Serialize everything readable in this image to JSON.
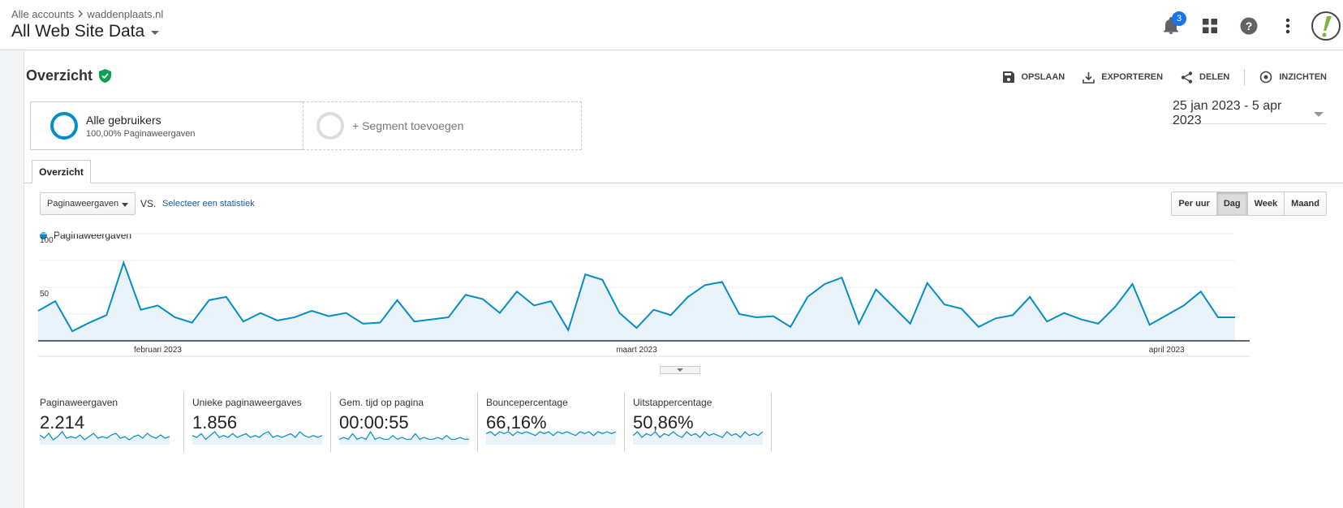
{
  "header": {
    "breadcrumb": [
      "Alle accounts",
      "waddenplaats.nl"
    ],
    "view_title": "All Web Site Data",
    "notification_count": "3",
    "icons": [
      "bell-icon",
      "apps-grid-icon",
      "help-icon",
      "more-vert-icon",
      "avatar"
    ]
  },
  "report": {
    "title": "Overzicht",
    "actions": [
      "OPSLAAN",
      "EXPORTEREN",
      "DELEN",
      "INZICHTEN"
    ]
  },
  "segments": {
    "active_name": "Alle gebruikers",
    "active_sub": "100,00% Paginaweergaven",
    "add_label": "+ Segment toevoegen"
  },
  "date_range": "25 jan 2023 - 5 apr 2023",
  "tabs": [
    "Overzicht"
  ],
  "controls": {
    "metric": "Paginaweergaven",
    "vs": "VS.",
    "select_stat": "Selecteer een statistiek",
    "granularity": [
      "Per uur",
      "Dag",
      "Week",
      "Maand"
    ],
    "granularity_active": "Dag"
  },
  "colors": {
    "series": "#058dc7",
    "fill": "#e9f3f9",
    "verified": "#0f9d58"
  },
  "chart_data": {
    "type": "area",
    "series": [
      {
        "name": "Paginaweergaven",
        "values": [
          28,
          37,
          9,
          17,
          24,
          73,
          29,
          33,
          22,
          17,
          38,
          41,
          18,
          26,
          19,
          22,
          28,
          23,
          26,
          16,
          17,
          38,
          18,
          20,
          22,
          43,
          39,
          26,
          46,
          33,
          37,
          10,
          62,
          57,
          26,
          12,
          29,
          24,
          41,
          52,
          55,
          25,
          22,
          23,
          13,
          41,
          53,
          59,
          16,
          48,
          32,
          16,
          54,
          34,
          30,
          13,
          21,
          24,
          41,
          18,
          26,
          20,
          16,
          32,
          53,
          15,
          24,
          33,
          46,
          22,
          22
        ]
      }
    ],
    "x_ticks": [
      "februari 2023",
      "maart 2023",
      "april 2023"
    ],
    "y_ticks": [
      "100",
      "50"
    ],
    "ylim": [
      0,
      100
    ],
    "grid": true
  },
  "stats": [
    {
      "label": "Paginaweergaven",
      "value": "2.214",
      "spark": [
        5,
        3,
        6,
        2,
        4,
        7,
        3,
        4,
        3,
        5,
        2,
        4,
        6,
        3,
        4,
        3,
        5,
        6,
        3,
        4,
        2,
        4,
        5,
        3,
        6,
        4,
        3,
        5,
        3,
        4
      ]
    },
    {
      "label": "Unieke paginaweergaves",
      "value": "1.856",
      "spark": [
        4,
        3,
        5,
        2,
        4,
        6,
        3,
        4,
        3,
        5,
        3,
        4,
        5,
        3,
        4,
        3,
        5,
        6,
        3,
        4,
        3,
        4,
        5,
        3,
        6,
        4,
        3,
        4,
        3,
        4
      ]
    },
    {
      "label": "Gem. tijd op pagina",
      "value": "00:00:55",
      "spark": [
        2,
        3,
        2,
        5,
        2,
        3,
        2,
        6,
        2,
        3,
        2,
        2,
        4,
        2,
        3,
        2,
        2,
        5,
        2,
        3,
        2,
        2,
        3,
        2,
        4,
        2,
        2,
        3,
        2,
        2
      ]
    },
    {
      "label": "Bouncepercentage",
      "value": "66,16%",
      "spark": [
        5,
        6,
        4,
        6,
        5,
        6,
        4,
        6,
        5,
        6,
        5,
        4,
        6,
        5,
        6,
        4,
        6,
        5,
        6,
        5,
        4,
        6,
        5,
        6,
        4,
        6,
        5,
        6,
        5,
        6
      ]
    },
    {
      "label": "Uitstappercentage",
      "value": "50,86%",
      "spark": [
        4,
        6,
        3,
        5,
        4,
        6,
        3,
        5,
        4,
        6,
        4,
        3,
        6,
        4,
        5,
        3,
        6,
        4,
        5,
        4,
        3,
        6,
        4,
        5,
        3,
        6,
        4,
        5,
        4,
        6
      ]
    }
  ]
}
